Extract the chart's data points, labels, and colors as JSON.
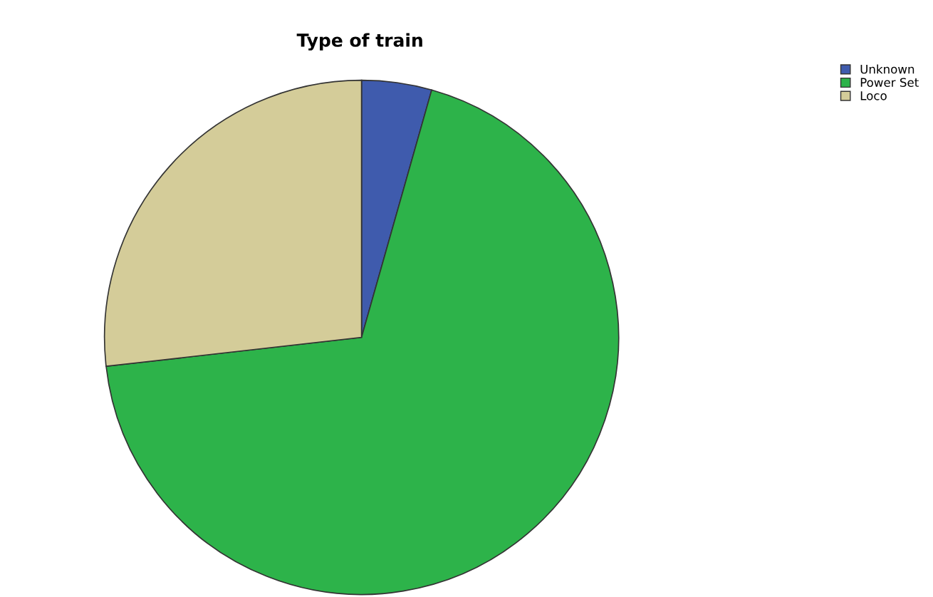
{
  "chart_data": {
    "type": "pie",
    "title": "Type of train",
    "categories": [
      "Unknown",
      "Power Set",
      "Loco"
    ],
    "values": [
      4.4,
      68.8,
      26.8
    ],
    "colors": [
      "#3f5bad",
      "#2db34a",
      "#d4cc99"
    ],
    "legend": "top right"
  }
}
